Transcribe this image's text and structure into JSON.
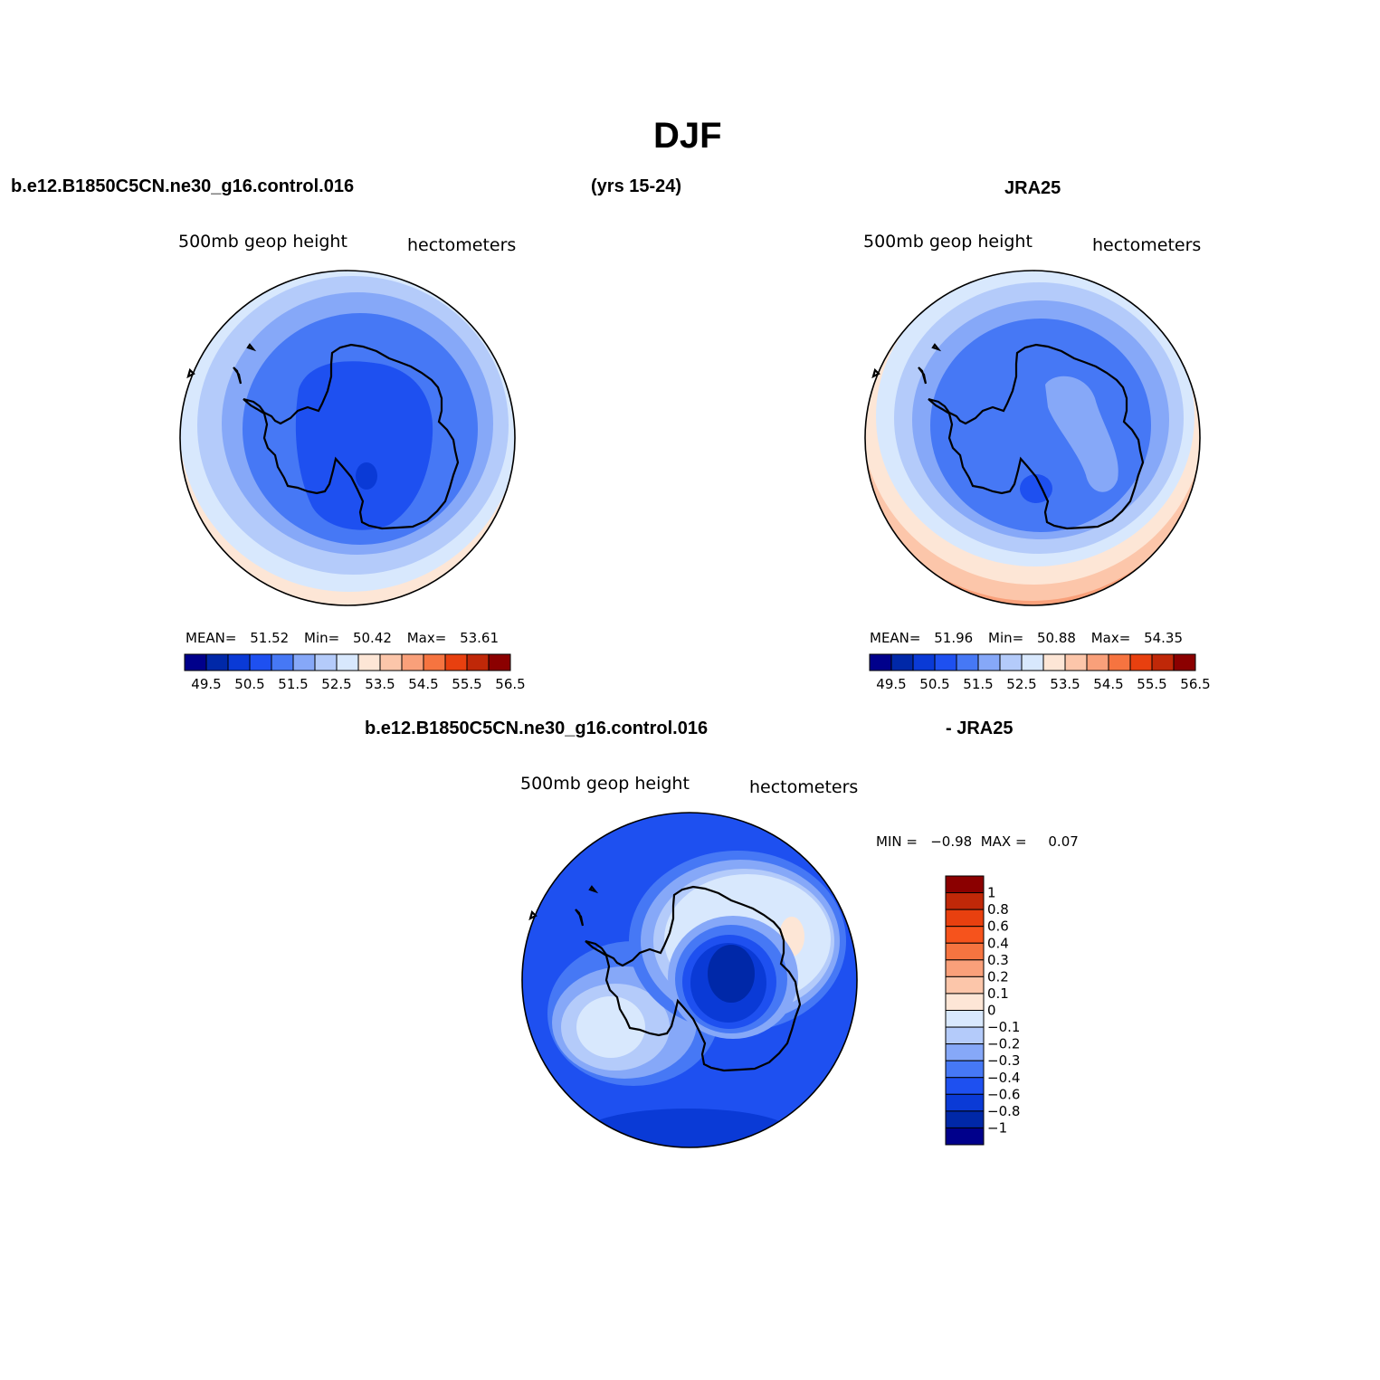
{
  "title": "DJF",
  "top_left_header": "b.e12.B1850C5CN.ne30_g16.control.016",
  "top_center_header": "(yrs 15-24)",
  "top_right_header": "JRA25",
  "bottom_header_left": "b.e12.B1850C5CN.ne30_g16.control.016",
  "bottom_header_right": "- JRA25",
  "panels": [
    {
      "variable": "500mb  geop height",
      "units": "hectometers",
      "stats": {
        "mean_label": "MEAN=",
        "mean": "51.52",
        "min_label": "Min=",
        "min": "50.42",
        "max_label": "Max=",
        "max": "53.61"
      }
    },
    {
      "variable": "500mb  geop height",
      "units": "hectometers",
      "stats": {
        "mean_label": "MEAN=",
        "mean": "51.96",
        "min_label": "Min=",
        "min": "50.88",
        "max_label": "Max=",
        "max": "54.35"
      }
    },
    {
      "variable": "500mb  geop height",
      "units": "hectometers",
      "stats_line": "MIN =   −0.98  MAX =     0.07"
    }
  ],
  "colorbar_abs": {
    "colors": [
      "#00008b",
      "#0028a8",
      "#0a3ad6",
      "#1e50f0",
      "#4678f5",
      "#86a8f8",
      "#b4cbfa",
      "#d8e8fd",
      "#fde6d6",
      "#fcc6aa",
      "#f9a07a",
      "#f67440",
      "#e8400f",
      "#c02808",
      "#8b0000"
    ],
    "labels": [
      "49.5",
      "50.5",
      "51.5",
      "52.5",
      "53.5",
      "54.5",
      "55.5",
      "56.5"
    ]
  },
  "colorbar_diff": {
    "colors_top_to_bottom": [
      "#8b0000",
      "#c02808",
      "#e8400f",
      "#f6531c",
      "#f67440",
      "#f9a07a",
      "#fcc6aa",
      "#fde6d6",
      "#d8e8fd",
      "#b4cbfa",
      "#86a8f8",
      "#4678f5",
      "#1e50f0",
      "#0a3ad6",
      "#0028a8",
      "#00008b"
    ],
    "labels": [
      "1",
      "0.8",
      "0.6",
      "0.4",
      "0.3",
      "0.2",
      "0.1",
      "0",
      "−0.1",
      "−0.2",
      "−0.3",
      "−0.4",
      "−0.6",
      "−0.8",
      "−1"
    ]
  }
}
